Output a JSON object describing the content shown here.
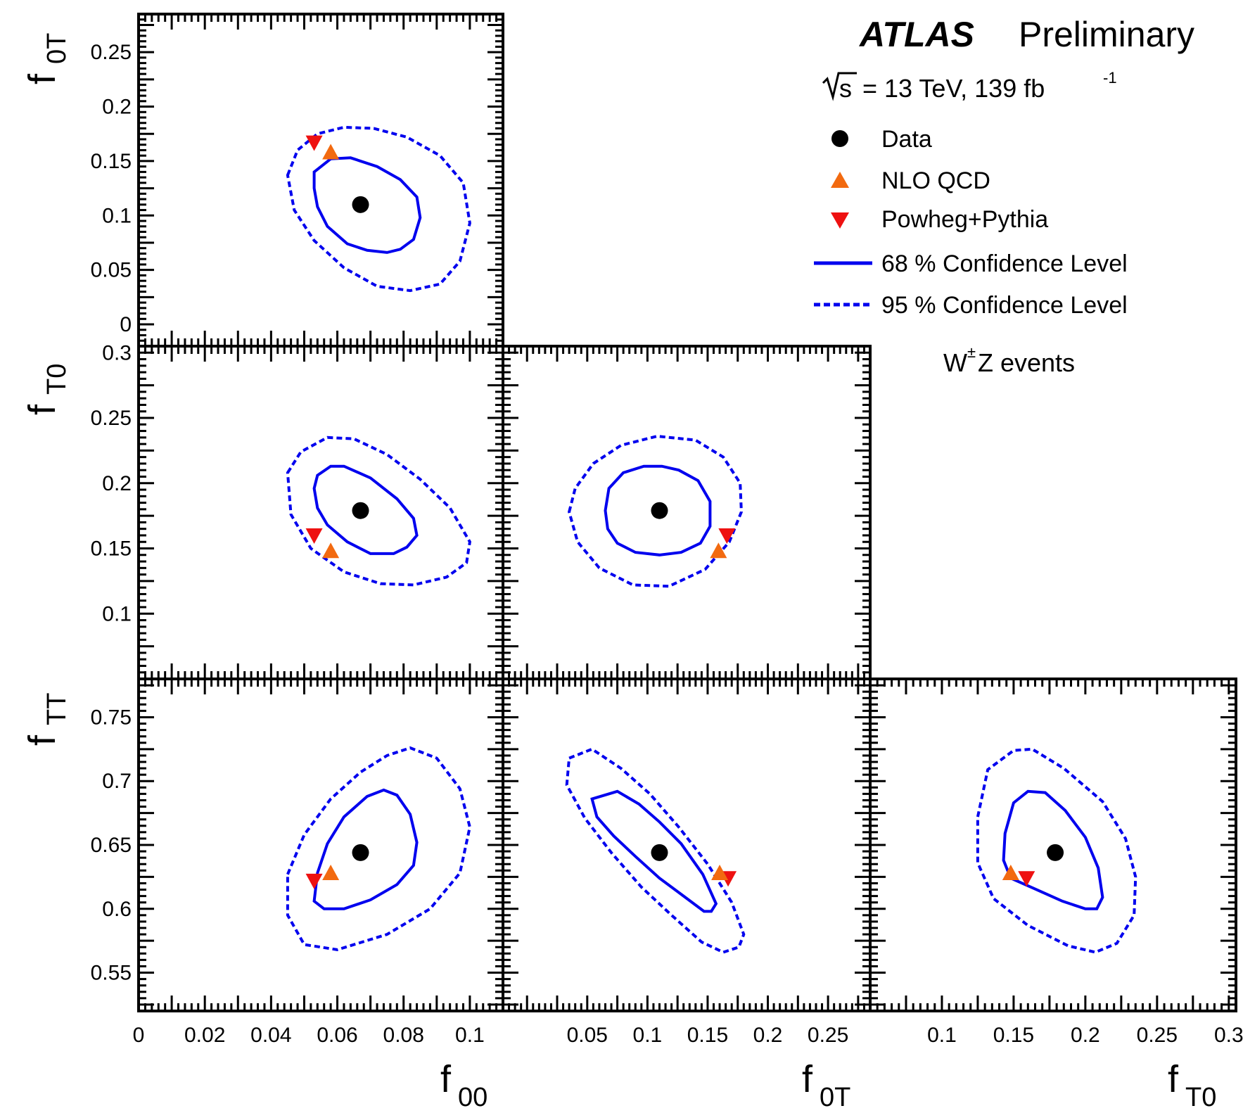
{
  "header": {
    "experiment": "ATLAS",
    "status": "Preliminary",
    "energy_symbol": "s",
    "energy_text": "= 13 TeV, 139 fb",
    "lumi_exponent": "-1",
    "process_prefix": "W",
    "process_sup": "±",
    "process_suffix": "Z events"
  },
  "legend": {
    "data": "Data",
    "nlo": "NLO QCD",
    "powheg": "Powheg+Pythia",
    "cl68": "68 % Confidence Level",
    "cl95": "95 % Confidence Level"
  },
  "axes": {
    "f00": {
      "main": "f",
      "sub": "00",
      "ticks": [
        "0",
        "0.02",
        "0.04",
        "0.06",
        "0.08",
        "0.1"
      ],
      "range": [
        0,
        0.11
      ]
    },
    "f0T": {
      "main": "f",
      "sub": "0T",
      "ticks": [
        "0",
        "0.05",
        "0.1",
        "0.15",
        "0.2",
        "0.25"
      ],
      "ticks_x": [
        "0.05",
        "0.1",
        "0.15",
        "0.2",
        "0.25"
      ],
      "range": [
        -0.02,
        0.285
      ]
    },
    "fT0": {
      "main": "f",
      "sub": "T0",
      "ticks": [
        "0.1",
        "0.15",
        "0.2",
        "0.25",
        "0.3"
      ],
      "range": [
        0.05,
        0.305
      ]
    },
    "fTT": {
      "main": "f",
      "sub": "TT",
      "ticks": [
        "0.55",
        "0.6",
        "0.65",
        "0.7",
        "0.75"
      ],
      "range": [
        0.52,
        0.78
      ]
    }
  },
  "colors": {
    "contour": "#0000ee",
    "data": "#000000",
    "nlo": "#f26a10",
    "powheg": "#ee1111"
  },
  "chart_data": [
    {
      "type": "scatter",
      "xlabel": "f00",
      "ylabel": "f0T",
      "xlim": [
        0,
        0.11
      ],
      "ylim": [
        -0.02,
        0.285
      ],
      "data": {
        "x": 0.067,
        "y": 0.11
      },
      "nlo": {
        "x": 0.058,
        "y": 0.158
      },
      "powheg": {
        "x": 0.053,
        "y": 0.167
      },
      "cl68": [
        [
          0.053,
          0.14
        ],
        [
          0.058,
          0.152
        ],
        [
          0.064,
          0.153
        ],
        [
          0.072,
          0.145
        ],
        [
          0.079,
          0.133
        ],
        [
          0.084,
          0.117
        ],
        [
          0.085,
          0.098
        ],
        [
          0.083,
          0.078
        ],
        [
          0.079,
          0.069
        ],
        [
          0.075,
          0.066
        ],
        [
          0.069,
          0.068
        ],
        [
          0.063,
          0.074
        ],
        [
          0.057,
          0.09
        ],
        [
          0.054,
          0.108
        ],
        [
          0.053,
          0.125
        ]
      ],
      "cl95": [
        [
          0.045,
          0.137
        ],
        [
          0.048,
          0.16
        ],
        [
          0.054,
          0.175
        ],
        [
          0.062,
          0.181
        ],
        [
          0.071,
          0.18
        ],
        [
          0.081,
          0.172
        ],
        [
          0.091,
          0.155
        ],
        [
          0.098,
          0.13
        ],
        [
          0.1,
          0.093
        ],
        [
          0.097,
          0.058
        ],
        [
          0.091,
          0.037
        ],
        [
          0.082,
          0.031
        ],
        [
          0.072,
          0.035
        ],
        [
          0.062,
          0.052
        ],
        [
          0.053,
          0.077
        ],
        [
          0.047,
          0.105
        ]
      ]
    },
    {
      "type": "scatter",
      "xlabel": "f00",
      "ylabel": "fT0",
      "xlim": [
        0,
        0.11
      ],
      "ylim": [
        0.05,
        0.305
      ],
      "data": {
        "x": 0.067,
        "y": 0.179
      },
      "nlo": {
        "x": 0.058,
        "y": 0.148
      },
      "powheg": {
        "x": 0.053,
        "y": 0.16
      },
      "cl68": [
        [
          0.054,
          0.206
        ],
        [
          0.058,
          0.213
        ],
        [
          0.062,
          0.213
        ],
        [
          0.07,
          0.204
        ],
        [
          0.078,
          0.188
        ],
        [
          0.083,
          0.173
        ],
        [
          0.084,
          0.16
        ],
        [
          0.081,
          0.151
        ],
        [
          0.077,
          0.146
        ],
        [
          0.07,
          0.146
        ],
        [
          0.063,
          0.155
        ],
        [
          0.057,
          0.168
        ],
        [
          0.054,
          0.181
        ],
        [
          0.053,
          0.196
        ]
      ],
      "cl95": [
        [
          0.045,
          0.208
        ],
        [
          0.049,
          0.224
        ],
        [
          0.057,
          0.235
        ],
        [
          0.065,
          0.234
        ],
        [
          0.075,
          0.222
        ],
        [
          0.085,
          0.203
        ],
        [
          0.094,
          0.181
        ],
        [
          0.1,
          0.155
        ],
        [
          0.099,
          0.139
        ],
        [
          0.093,
          0.128
        ],
        [
          0.083,
          0.122
        ],
        [
          0.073,
          0.123
        ],
        [
          0.062,
          0.132
        ],
        [
          0.052,
          0.15
        ],
        [
          0.046,
          0.176
        ]
      ]
    },
    {
      "type": "scatter",
      "xlabel": "f0T",
      "ylabel": "fT0",
      "xlim": [
        -0.02,
        0.285
      ],
      "ylim": [
        0.05,
        0.305
      ],
      "data": {
        "x": 0.11,
        "y": 0.179
      },
      "nlo": {
        "x": 0.159,
        "y": 0.148
      },
      "powheg": {
        "x": 0.166,
        "y": 0.16
      },
      "cl68": [
        [
          0.065,
          0.179
        ],
        [
          0.068,
          0.196
        ],
        [
          0.08,
          0.208
        ],
        [
          0.097,
          0.213
        ],
        [
          0.112,
          0.213
        ],
        [
          0.126,
          0.21
        ],
        [
          0.142,
          0.202
        ],
        [
          0.152,
          0.186
        ],
        [
          0.152,
          0.167
        ],
        [
          0.144,
          0.154
        ],
        [
          0.128,
          0.147
        ],
        [
          0.11,
          0.145
        ],
        [
          0.09,
          0.147
        ],
        [
          0.075,
          0.154
        ],
        [
          0.067,
          0.165
        ]
      ],
      "cl95": [
        [
          0.035,
          0.178
        ],
        [
          0.04,
          0.196
        ],
        [
          0.055,
          0.215
        ],
        [
          0.078,
          0.229
        ],
        [
          0.108,
          0.236
        ],
        [
          0.14,
          0.233
        ],
        [
          0.163,
          0.22
        ],
        [
          0.177,
          0.2
        ],
        [
          0.178,
          0.178
        ],
        [
          0.168,
          0.155
        ],
        [
          0.148,
          0.134
        ],
        [
          0.118,
          0.121
        ],
        [
          0.088,
          0.122
        ],
        [
          0.06,
          0.135
        ],
        [
          0.042,
          0.155
        ]
      ]
    },
    {
      "type": "scatter",
      "xlabel": "f00",
      "ylabel": "fTT",
      "xlim": [
        0,
        0.11
      ],
      "ylim": [
        0.52,
        0.78
      ],
      "data": {
        "x": 0.067,
        "y": 0.644
      },
      "nlo": {
        "x": 0.058,
        "y": 0.628
      },
      "powheg": {
        "x": 0.053,
        "y": 0.622
      },
      "cl68": [
        [
          0.054,
          0.628
        ],
        [
          0.057,
          0.651
        ],
        [
          0.062,
          0.672
        ],
        [
          0.069,
          0.688
        ],
        [
          0.074,
          0.693
        ],
        [
          0.078,
          0.689
        ],
        [
          0.082,
          0.674
        ],
        [
          0.084,
          0.652
        ],
        [
          0.083,
          0.634
        ],
        [
          0.078,
          0.619
        ],
        [
          0.07,
          0.607
        ],
        [
          0.062,
          0.6
        ],
        [
          0.056,
          0.6
        ],
        [
          0.053,
          0.606
        ]
      ],
      "cl95": [
        [
          0.045,
          0.627
        ],
        [
          0.05,
          0.658
        ],
        [
          0.058,
          0.686
        ],
        [
          0.067,
          0.707
        ],
        [
          0.075,
          0.72
        ],
        [
          0.082,
          0.726
        ],
        [
          0.09,
          0.718
        ],
        [
          0.097,
          0.694
        ],
        [
          0.1,
          0.664
        ],
        [
          0.097,
          0.628
        ],
        [
          0.088,
          0.6
        ],
        [
          0.075,
          0.58
        ],
        [
          0.06,
          0.568
        ],
        [
          0.05,
          0.572
        ],
        [
          0.045,
          0.595
        ]
      ]
    },
    {
      "type": "scatter",
      "xlabel": "f0T",
      "ylabel": "fTT",
      "xlim": [
        -0.02,
        0.285
      ],
      "ylim": [
        0.52,
        0.78
      ],
      "data": {
        "x": 0.11,
        "y": 0.644
      },
      "nlo": {
        "x": 0.16,
        "y": 0.628
      },
      "powheg": {
        "x": 0.167,
        "y": 0.624
      },
      "cl68": [
        [
          0.054,
          0.686
        ],
        [
          0.075,
          0.692
        ],
        [
          0.093,
          0.682
        ],
        [
          0.11,
          0.668
        ],
        [
          0.128,
          0.651
        ],
        [
          0.146,
          0.627
        ],
        [
          0.157,
          0.604
        ],
        [
          0.153,
          0.598
        ],
        [
          0.147,
          0.598
        ],
        [
          0.13,
          0.61
        ],
        [
          0.11,
          0.624
        ],
        [
          0.09,
          0.641
        ],
        [
          0.072,
          0.657
        ],
        [
          0.058,
          0.672
        ]
      ],
      "cl95": [
        [
          0.035,
          0.718
        ],
        [
          0.054,
          0.725
        ],
        [
          0.078,
          0.71
        ],
        [
          0.102,
          0.69
        ],
        [
          0.126,
          0.664
        ],
        [
          0.15,
          0.635
        ],
        [
          0.17,
          0.605
        ],
        [
          0.18,
          0.58
        ],
        [
          0.176,
          0.57
        ],
        [
          0.163,
          0.566
        ],
        [
          0.145,
          0.574
        ],
        [
          0.12,
          0.595
        ],
        [
          0.095,
          0.617
        ],
        [
          0.07,
          0.644
        ],
        [
          0.048,
          0.671
        ],
        [
          0.033,
          0.697
        ]
      ]
    },
    {
      "type": "scatter",
      "xlabel": "fT0",
      "ylabel": "fTT",
      "xlim": [
        0.05,
        0.305
      ],
      "ylim": [
        0.52,
        0.78
      ],
      "data": {
        "x": 0.179,
        "y": 0.644
      },
      "nlo": {
        "x": 0.148,
        "y": 0.628
      },
      "powheg": {
        "x": 0.159,
        "y": 0.624
      },
      "cl68": [
        [
          0.144,
          0.659
        ],
        [
          0.15,
          0.683
        ],
        [
          0.16,
          0.692
        ],
        [
          0.172,
          0.691
        ],
        [
          0.186,
          0.677
        ],
        [
          0.2,
          0.656
        ],
        [
          0.209,
          0.632
        ],
        [
          0.212,
          0.609
        ],
        [
          0.208,
          0.6
        ],
        [
          0.2,
          0.6
        ],
        [
          0.184,
          0.606
        ],
        [
          0.164,
          0.616
        ],
        [
          0.148,
          0.624
        ],
        [
          0.143,
          0.638
        ]
      ],
      "cl95": [
        [
          0.125,
          0.672
        ],
        [
          0.132,
          0.709
        ],
        [
          0.15,
          0.724
        ],
        [
          0.163,
          0.725
        ],
        [
          0.185,
          0.71
        ],
        [
          0.212,
          0.684
        ],
        [
          0.228,
          0.655
        ],
        [
          0.235,
          0.625
        ],
        [
          0.234,
          0.595
        ],
        [
          0.222,
          0.573
        ],
        [
          0.207,
          0.566
        ],
        [
          0.188,
          0.571
        ],
        [
          0.16,
          0.587
        ],
        [
          0.136,
          0.608
        ],
        [
          0.125,
          0.636
        ]
      ]
    }
  ]
}
